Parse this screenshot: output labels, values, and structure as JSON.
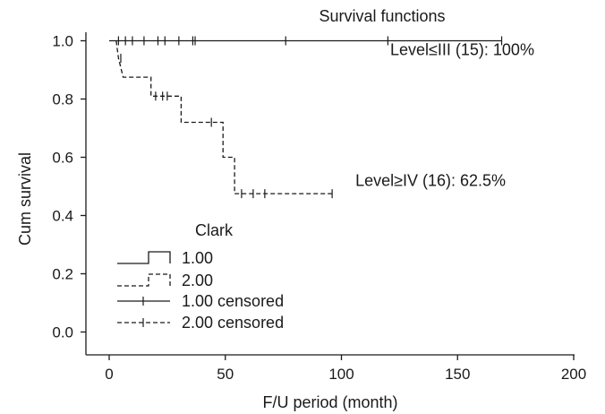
{
  "chart_data": {
    "type": "line",
    "title": "Survival functions",
    "xlabel": "F/U period (month)",
    "ylabel": "Cum survival",
    "xlim": [
      0,
      200
    ],
    "ylim": [
      0.0,
      1.0
    ],
    "x_ticks": [
      0,
      50,
      100,
      150,
      200
    ],
    "x_tick_labels": [
      "0",
      "50",
      "100",
      "150",
      "200"
    ],
    "y_ticks": [
      0.0,
      0.2,
      0.4,
      0.6,
      0.8,
      1.0
    ],
    "y_tick_labels": [
      "0.0",
      "0.2",
      "0.4",
      "0.6",
      "0.8",
      "1.0"
    ],
    "grid": false,
    "legend": {
      "title": "Clark",
      "placement": "bottom-left",
      "entries": [
        "1.00",
        "2.00",
        "1.00 censored",
        "2.00 censored"
      ]
    },
    "series": [
      {
        "name": "1.00",
        "style": "solid",
        "steps": [
          [
            0,
            1.0
          ],
          [
            169,
            1.0
          ]
        ],
        "censored": [
          [
            4,
            1.0
          ],
          [
            7,
            1.0
          ],
          [
            10,
            1.0
          ],
          [
            15,
            1.0
          ],
          [
            21,
            1.0
          ],
          [
            24,
            1.0
          ],
          [
            30,
            1.0
          ],
          [
            36,
            1.0
          ],
          [
            37,
            1.0
          ],
          [
            76,
            1.0
          ],
          [
            120,
            1.0
          ],
          [
            169,
            1.0
          ]
        ]
      },
      {
        "name": "2.00",
        "style": "dashed",
        "steps": [
          [
            3,
            1.0
          ],
          [
            4,
            0.94
          ],
          [
            6,
            0.875
          ],
          [
            18,
            0.875
          ],
          [
            18,
            0.81
          ],
          [
            31,
            0.81
          ],
          [
            31,
            0.72
          ],
          [
            49,
            0.72
          ],
          [
            49,
            0.6
          ],
          [
            54,
            0.6
          ],
          [
            54,
            0.475
          ],
          [
            97,
            0.475
          ]
        ],
        "censored": [
          [
            5,
            0.94
          ],
          [
            20,
            0.81
          ],
          [
            23,
            0.81
          ],
          [
            25,
            0.81
          ],
          [
            44,
            0.72
          ],
          [
            57,
            0.475
          ],
          [
            62,
            0.475
          ],
          [
            67,
            0.475
          ],
          [
            96,
            0.475
          ]
        ]
      }
    ],
    "annotations": [
      {
        "text": "Level≤III (15): 100%",
        "x": 121,
        "y": 0.97
      },
      {
        "text": "Level≥IV (16): 62.5%",
        "x": 106,
        "y": 0.52
      }
    ]
  }
}
